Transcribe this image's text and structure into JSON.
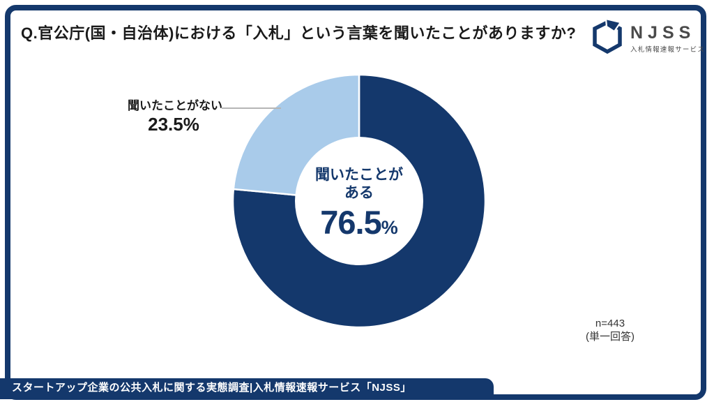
{
  "page": {
    "title": "Q.官公庁(国・自治体)における「入札」という言葉を聞いたことがありますか?"
  },
  "logo": {
    "name": "NJSS",
    "tagline": "入札情報速報サービス"
  },
  "chart_data": {
    "type": "pie",
    "title": "Q.官公庁(国・自治体)における「入札」という言葉を聞いたことがありますか?",
    "labels": [
      "聞いたことがある",
      "聞いたことがない"
    ],
    "values": [
      76.5,
      23.5
    ],
    "unit": "%",
    "colors": [
      "#14386C",
      "#A9CBEA"
    ],
    "donut": true,
    "hole_ratio": 0.51,
    "start_angle_deg": 0,
    "direction": "clockwise",
    "legend_position": "none",
    "center_label": {
      "line1": "聞いたことが",
      "line2": "ある",
      "value": "76.5",
      "unit": "%"
    },
    "callout": {
      "label": "聞いたことがない",
      "value": "23.5%"
    }
  },
  "note": {
    "line1": "n=443",
    "line2": "(単一回答)"
  },
  "footer": {
    "text": "スタートアップ企業の公共入札に関する実態調査|入札情報速報サービス「NJSS」"
  },
  "theme": {
    "navy": "#14386C",
    "light_blue": "#A9CBEA",
    "text": "#1a1a1a",
    "line": "#b5b5b5"
  }
}
